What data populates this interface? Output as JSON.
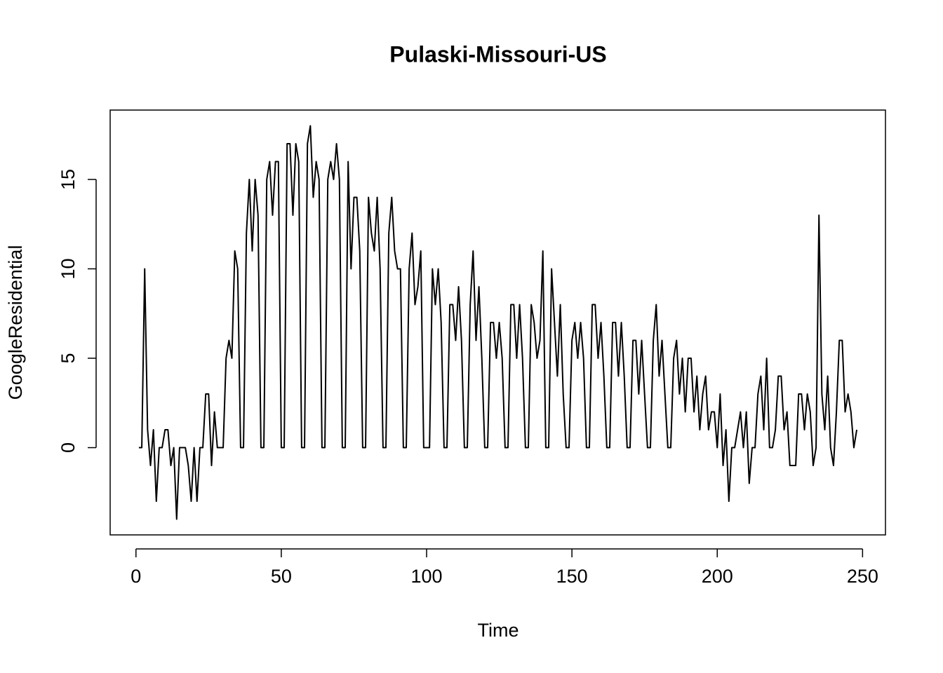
{
  "chart_data": {
    "type": "line",
    "title": "Pulaski-Missouri-US",
    "x_label": "Time",
    "y_label": "GoogleResidential",
    "x": [
      1,
      2,
      3,
      4,
      5,
      6,
      7,
      8,
      9,
      10,
      11,
      12,
      13,
      14,
      15,
      16,
      17,
      18,
      19,
      20,
      21,
      22,
      23,
      24,
      25,
      26,
      27,
      28,
      29,
      30,
      31,
      32,
      33,
      34,
      35,
      36,
      37,
      38,
      39,
      40,
      41,
      42,
      43,
      44,
      45,
      46,
      47,
      48,
      49,
      50,
      51,
      52,
      53,
      54,
      55,
      56,
      57,
      58,
      59,
      60,
      61,
      62,
      63,
      64,
      65,
      66,
      67,
      68,
      69,
      70,
      71,
      72,
      73,
      74,
      75,
      76,
      77,
      78,
      79,
      80,
      81,
      82,
      83,
      84,
      85,
      86,
      87,
      88,
      89,
      90,
      91,
      92,
      93,
      94,
      95,
      96,
      97,
      98,
      99,
      100,
      101,
      102,
      103,
      104,
      105,
      106,
      107,
      108,
      109,
      110,
      111,
      112,
      113,
      114,
      115,
      116,
      117,
      118,
      119,
      120,
      121,
      122,
      123,
      124,
      125,
      126,
      127,
      128,
      129,
      130,
      131,
      132,
      133,
      134,
      135,
      136,
      137,
      138,
      139,
      140,
      141,
      142,
      143,
      144,
      145,
      146,
      147,
      148,
      149,
      150,
      151,
      152,
      153,
      154,
      155,
      156,
      157,
      158,
      159,
      160,
      161,
      162,
      163,
      164,
      165,
      166,
      167,
      168,
      169,
      170,
      171,
      172,
      173,
      174,
      175,
      176,
      177,
      178,
      179,
      180,
      181,
      182,
      183,
      184,
      185,
      186,
      187,
      188,
      189,
      190,
      191,
      192,
      193,
      194,
      195,
      196,
      197,
      198,
      199,
      200,
      201,
      202,
      203,
      204,
      205,
      206,
      207,
      208,
      209,
      210,
      211,
      212,
      213,
      214,
      215,
      216,
      217,
      218,
      219,
      220,
      221,
      222,
      223,
      224,
      225,
      226,
      227,
      228,
      229,
      230,
      231,
      232,
      233,
      234,
      235,
      236,
      237,
      238,
      239,
      240,
      241,
      242,
      243,
      244,
      245,
      246,
      247,
      248
    ],
    "series": [
      {
        "color": "#000000",
        "values": [
          0,
          0,
          10,
          1,
          -1,
          1,
          -3,
          0,
          0,
          1,
          1,
          -1,
          0,
          -4,
          0,
          0,
          0,
          -1,
          -3,
          0,
          -3,
          0,
          0,
          3,
          3,
          -1,
          2,
          0,
          0,
          0,
          5,
          6,
          5,
          11,
          10,
          0,
          0,
          12,
          15,
          11,
          15,
          13,
          0,
          0,
          15,
          16,
          13,
          16,
          16,
          0,
          0,
          17,
          17,
          13,
          17,
          16,
          0,
          0,
          17,
          18,
          14,
          16,
          15,
          0,
          0,
          15,
          16,
          15,
          17,
          15,
          0,
          0,
          16,
          10,
          14,
          14,
          11,
          0,
          0,
          14,
          12,
          11,
          14,
          10,
          0,
          0,
          12,
          14,
          11,
          10,
          10,
          0,
          0,
          10,
          12,
          8,
          9,
          11,
          0,
          0,
          0,
          10,
          8,
          10,
          7,
          0,
          0,
          8,
          8,
          6,
          9,
          6,
          0,
          0,
          8,
          11,
          6,
          9,
          5,
          0,
          0,
          7,
          7,
          5,
          7,
          5,
          0,
          0,
          8,
          8,
          5,
          8,
          5,
          0,
          0,
          8,
          7,
          5,
          6,
          11,
          0,
          0,
          10,
          7,
          4,
          8,
          3,
          0,
          0,
          6,
          7,
          5,
          7,
          5,
          0,
          0,
          8,
          8,
          5,
          7,
          4,
          0,
          0,
          7,
          7,
          4,
          7,
          4,
          0,
          0,
          6,
          6,
          3,
          6,
          3,
          0,
          0,
          6,
          8,
          4,
          6,
          3,
          0,
          0,
          5,
          6,
          3,
          5,
          2,
          5,
          5,
          2,
          4,
          1,
          3,
          4,
          1,
          2,
          2,
          0,
          3,
          -1,
          1,
          -3,
          0,
          0,
          1,
          2,
          0,
          2,
          -2,
          0,
          0,
          3,
          4,
          1,
          5,
          0,
          0,
          1,
          4,
          4,
          1,
          2,
          -1,
          -1,
          -1,
          3,
          3,
          1,
          3,
          2,
          -1,
          0,
          13,
          3,
          1,
          4,
          0,
          -1,
          2,
          6,
          6,
          2,
          3,
          2,
          0,
          1
        ]
      }
    ],
    "xlim": [
      -8.88,
      257.88
    ],
    "ylim": [
      -4.88,
      18.88
    ],
    "xticks": [
      0,
      50,
      100,
      150,
      200,
      250
    ],
    "yticks": [
      0,
      5,
      10,
      15
    ]
  }
}
